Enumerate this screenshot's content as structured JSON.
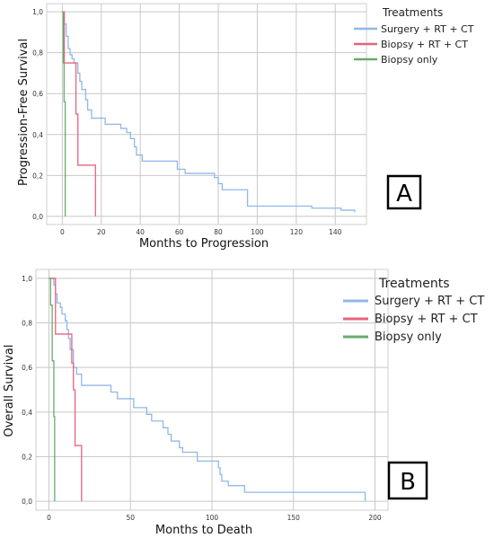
{
  "chart_data": [
    {
      "type": "line",
      "panel_label": "A",
      "xlabel": "Months to Progression",
      "ylabel": "Progression-Free Survival",
      "xlim": [
        -8,
        156
      ],
      "ylim": [
        -0.04,
        1.04
      ],
      "x_ticks": [
        0,
        20,
        40,
        60,
        80,
        100,
        120,
        140
      ],
      "y_ticks": [
        0.0,
        0.2,
        0.4,
        0.6,
        0.8,
        1.0
      ],
      "x_tick_labels": [
        "0",
        "20",
        "40",
        "60",
        "80",
        "100",
        "120",
        "140"
      ],
      "y_tick_labels": [
        "0,0",
        "0,2",
        "0,4",
        "0,6",
        "0,8",
        "1,0"
      ],
      "grid": true,
      "legend": {
        "title": "Treatments",
        "position": "top-right",
        "items": [
          "Surgery + RT + CT",
          "Biopsy + RT + CT",
          "Biopsy only"
        ]
      },
      "series": [
        {
          "name": "Surgery + RT + CT",
          "color": "#8fb8ea",
          "points": [
            [
              0,
              1.0
            ],
            [
              1,
              1.0
            ],
            [
              1,
              0.94
            ],
            [
              2,
              0.94
            ],
            [
              2,
              0.88
            ],
            [
              3,
              0.88
            ],
            [
              3,
              0.82
            ],
            [
              4,
              0.82
            ],
            [
              4,
              0.79
            ],
            [
              5,
              0.79
            ],
            [
              5,
              0.77
            ],
            [
              6,
              0.77
            ],
            [
              6,
              0.75
            ],
            [
              8,
              0.75
            ],
            [
              8,
              0.7
            ],
            [
              9,
              0.7
            ],
            [
              9,
              0.66
            ],
            [
              10,
              0.66
            ],
            [
              10,
              0.62
            ],
            [
              12,
              0.62
            ],
            [
              12,
              0.57
            ],
            [
              13,
              0.57
            ],
            [
              13,
              0.52
            ],
            [
              15,
              0.52
            ],
            [
              15,
              0.48
            ],
            [
              22,
              0.48
            ],
            [
              22,
              0.45
            ],
            [
              30,
              0.45
            ],
            [
              30,
              0.43
            ],
            [
              33,
              0.43
            ],
            [
              33,
              0.41
            ],
            [
              35,
              0.41
            ],
            [
              35,
              0.38
            ],
            [
              37,
              0.38
            ],
            [
              37,
              0.34
            ],
            [
              38,
              0.34
            ],
            [
              38,
              0.3
            ],
            [
              41,
              0.3
            ],
            [
              41,
              0.27
            ],
            [
              59,
              0.27
            ],
            [
              59,
              0.23
            ],
            [
              63,
              0.23
            ],
            [
              63,
              0.21
            ],
            [
              78,
              0.21
            ],
            [
              78,
              0.19
            ],
            [
              80,
              0.19
            ],
            [
              80,
              0.16
            ],
            [
              82,
              0.16
            ],
            [
              82,
              0.13
            ],
            [
              95,
              0.13
            ],
            [
              95,
              0.05
            ],
            [
              128,
              0.05
            ],
            [
              128,
              0.04
            ],
            [
              143,
              0.04
            ],
            [
              143,
              0.03
            ],
            [
              150,
              0.03
            ],
            [
              150,
              0.02
            ]
          ]
        },
        {
          "name": "Biopsy + RT + CT",
          "color": "#e8627c",
          "points": [
            [
              0,
              1.0
            ],
            [
              1,
              1.0
            ],
            [
              1,
              0.75
            ],
            [
              7,
              0.75
            ],
            [
              7,
              0.5
            ],
            [
              8,
              0.5
            ],
            [
              8,
              0.25
            ],
            [
              17,
              0.25
            ],
            [
              17,
              0.0
            ]
          ]
        },
        {
          "name": "Biopsy only",
          "color": "#6aaa6a",
          "points": [
            [
              0,
              1.0
            ],
            [
              0.5,
              1.0
            ],
            [
              0.5,
              0.75
            ],
            [
              0.9,
              0.75
            ],
            [
              0.9,
              0.56
            ],
            [
              1.5,
              0.56
            ],
            [
              1.5,
              0.0
            ]
          ]
        }
      ]
    },
    {
      "type": "line",
      "panel_label": "B",
      "xlabel": "Months to Death",
      "ylabel": "Overall Survival",
      "xlim": [
        -8,
        208
      ],
      "ylim": [
        -0.04,
        1.04
      ],
      "x_ticks": [
        0,
        50,
        100,
        150,
        200
      ],
      "y_ticks": [
        0.0,
        0.2,
        0.4,
        0.6,
        0.8,
        1.0
      ],
      "x_tick_labels": [
        "0",
        "50",
        "100",
        "150",
        "200"
      ],
      "y_tick_labels": [
        "0,0",
        "0,2",
        "0,4",
        "0,6",
        "0,8",
        "1,0"
      ],
      "grid": true,
      "legend": {
        "title": "Treatments",
        "position": "top-right",
        "items": [
          "Surgery + RT + CT",
          "Biopsy + RT + CT",
          "Biopsy only"
        ]
      },
      "series": [
        {
          "name": "Surgery + RT + CT",
          "color": "#8fb8ea",
          "points": [
            [
              0,
              1.0
            ],
            [
              3,
              1.0
            ],
            [
              3,
              0.97
            ],
            [
              4,
              0.97
            ],
            [
              4,
              0.93
            ],
            [
              5,
              0.93
            ],
            [
              5,
              0.89
            ],
            [
              7,
              0.89
            ],
            [
              7,
              0.87
            ],
            [
              8,
              0.87
            ],
            [
              8,
              0.84
            ],
            [
              10,
              0.84
            ],
            [
              10,
              0.81
            ],
            [
              11,
              0.81
            ],
            [
              11,
              0.77
            ],
            [
              12,
              0.77
            ],
            [
              12,
              0.73
            ],
            [
              13,
              0.73
            ],
            [
              13,
              0.68
            ],
            [
              15,
              0.68
            ],
            [
              15,
              0.6
            ],
            [
              17,
              0.6
            ],
            [
              17,
              0.57
            ],
            [
              20,
              0.57
            ],
            [
              20,
              0.52
            ],
            [
              38,
              0.52
            ],
            [
              38,
              0.49
            ],
            [
              42,
              0.49
            ],
            [
              42,
              0.46
            ],
            [
              52,
              0.46
            ],
            [
              52,
              0.42
            ],
            [
              60,
              0.42
            ],
            [
              60,
              0.39
            ],
            [
              63,
              0.39
            ],
            [
              63,
              0.36
            ],
            [
              70,
              0.36
            ],
            [
              70,
              0.33
            ],
            [
              73,
              0.33
            ],
            [
              73,
              0.3
            ],
            [
              75,
              0.3
            ],
            [
              75,
              0.27
            ],
            [
              80,
              0.27
            ],
            [
              80,
              0.24
            ],
            [
              82,
              0.24
            ],
            [
              82,
              0.22
            ],
            [
              91,
              0.22
            ],
            [
              91,
              0.18
            ],
            [
              104,
              0.18
            ],
            [
              104,
              0.15
            ],
            [
              105,
              0.15
            ],
            [
              105,
              0.12
            ],
            [
              106,
              0.12
            ],
            [
              106,
              0.09
            ],
            [
              110,
              0.09
            ],
            [
              110,
              0.07
            ],
            [
              120,
              0.07
            ],
            [
              120,
              0.04
            ],
            [
              194,
              0.04
            ],
            [
              194,
              0.0
            ]
          ]
        },
        {
          "name": "Biopsy + RT + CT",
          "color": "#e8627c",
          "points": [
            [
              0,
              1.0
            ],
            [
              4,
              1.0
            ],
            [
              4,
              0.75
            ],
            [
              14,
              0.75
            ],
            [
              14,
              0.62
            ],
            [
              15,
              0.62
            ],
            [
              15,
              0.5
            ],
            [
              16,
              0.5
            ],
            [
              16,
              0.25
            ],
            [
              20,
              0.25
            ],
            [
              20,
              0.0
            ]
          ]
        },
        {
          "name": "Biopsy only",
          "color": "#6aaa6a",
          "points": [
            [
              0,
              1.0
            ],
            [
              1,
              1.0
            ],
            [
              1,
              0.88
            ],
            [
              2,
              0.88
            ],
            [
              2,
              0.63
            ],
            [
              3,
              0.63
            ],
            [
              3,
              0.38
            ],
            [
              3.5,
              0.38
            ],
            [
              3.5,
              0.0
            ]
          ]
        }
      ]
    }
  ]
}
